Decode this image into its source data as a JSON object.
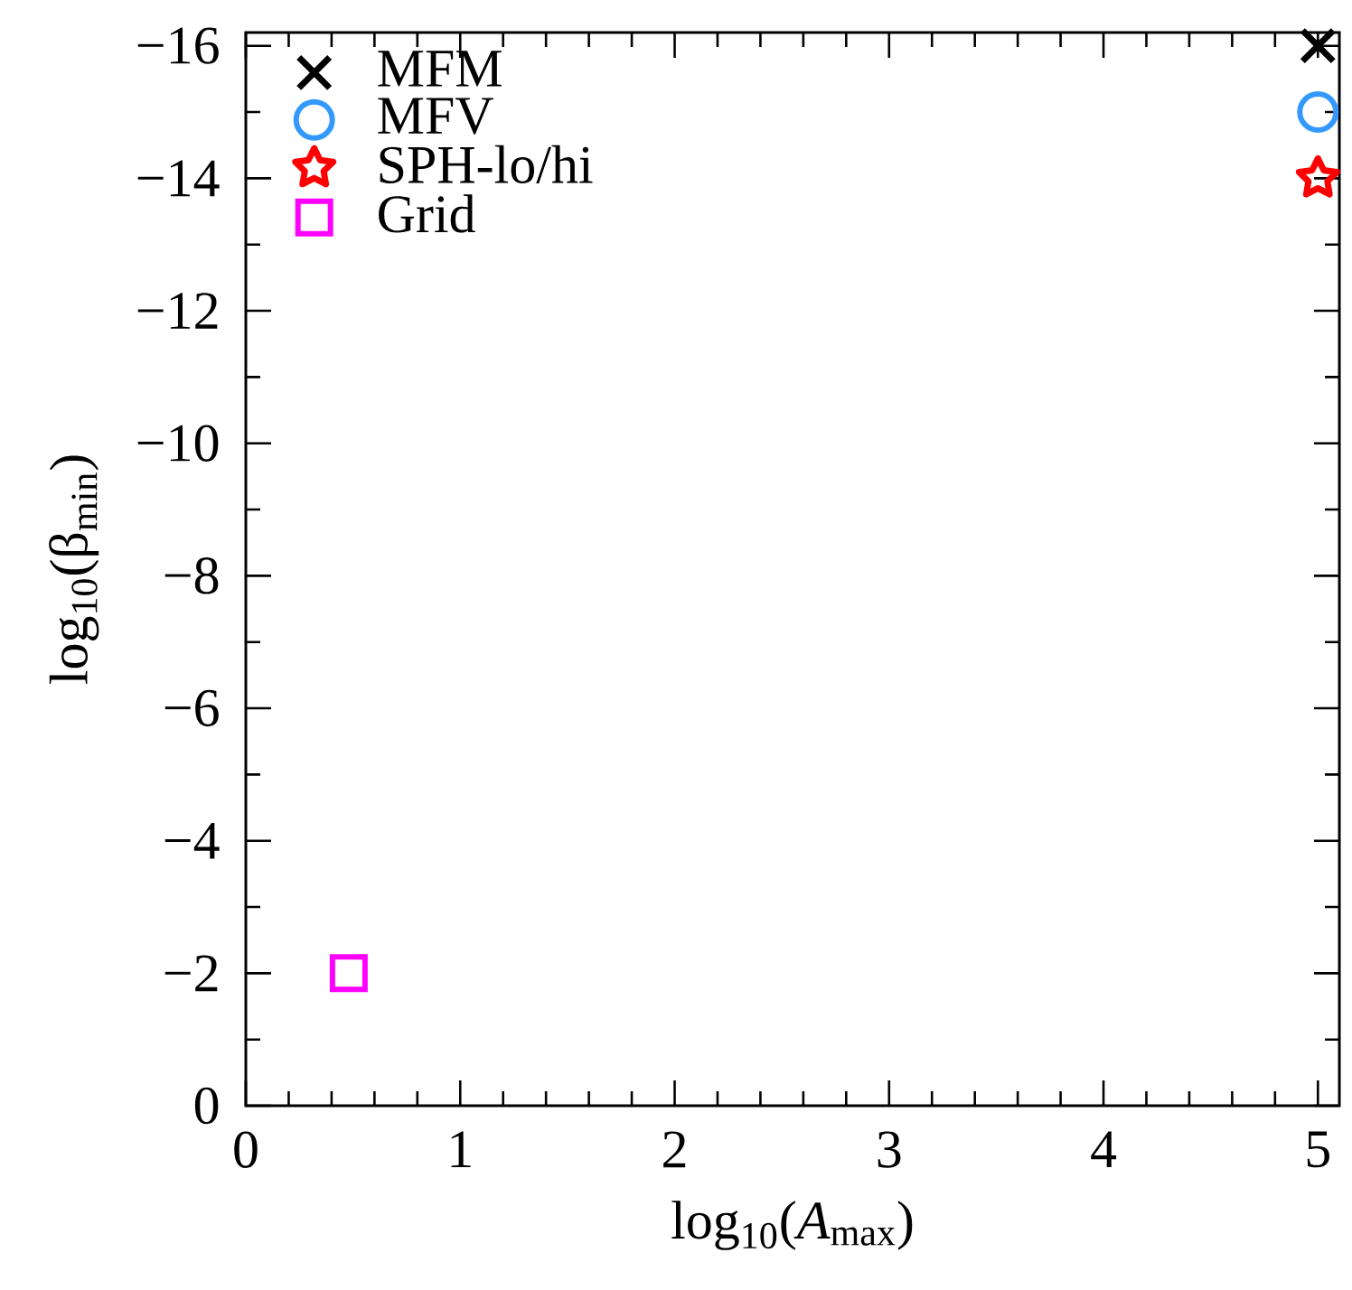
{
  "chart_data": {
    "type": "scatter",
    "xlabel": "log$_{10}$(*A*$_{max}$)",
    "ylabel": "log$_{10}$(β$_{min}$)",
    "xlim": [
      0,
      5.1
    ],
    "ylim": [
      0,
      -16.2
    ],
    "xticks": [
      0,
      1,
      2,
      3,
      4,
      5
    ],
    "yticks": [
      {
        "value": 0,
        "label": "0"
      },
      {
        "value": -2,
        "label": "−2"
      },
      {
        "value": -4,
        "label": "−4"
      },
      {
        "value": -6,
        "label": "−6"
      },
      {
        "value": -8,
        "label": "−8"
      },
      {
        "value": -10,
        "label": "−10"
      },
      {
        "value": -12,
        "label": "−12"
      },
      {
        "value": -14,
        "label": "−14"
      },
      {
        "value": -16,
        "label": "−16"
      }
    ],
    "legend": "top left",
    "grid": false,
    "x": [
      0.48,
      5
    ],
    "series": [
      {
        "name": "MFM",
        "color": "#000000",
        "marker": "cross",
        "values": [
          null,
          -16
        ]
      },
      {
        "name": "MFV",
        "color": "#3399ff",
        "marker": "circle",
        "values": [
          null,
          -15
        ]
      },
      {
        "name": "SPH-lo/hi",
        "color": "#ff0000",
        "marker": "star",
        "values": [
          null,
          -14
        ]
      },
      {
        "name": "Grid",
        "color": "#ff00ff",
        "marker": "square",
        "values": [
          -2,
          null
        ]
      }
    ]
  }
}
